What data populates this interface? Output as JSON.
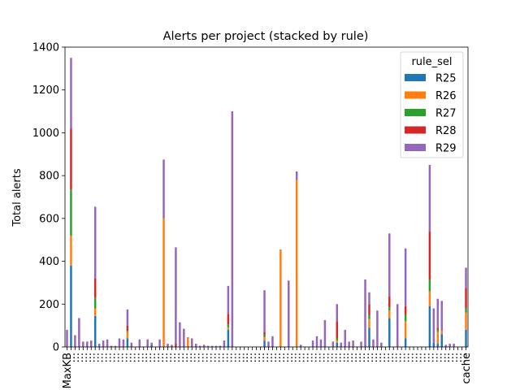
{
  "chart_data": {
    "type": "bar",
    "stacked": true,
    "title": "Alerts per project (stacked by rule)",
    "xlabel": "",
    "ylabel": "Total alerts",
    "ylim": [
      0,
      1400
    ],
    "yticks": [
      0,
      200,
      400,
      600,
      800,
      1000,
      1200,
      1400
    ],
    "grid": false,
    "legend": {
      "title": "rule_sel",
      "placement": "top-right"
    },
    "colors": {
      "R25": "#1f77b4",
      "R26": "#ff7f0e",
      "R27": "#2ca02c",
      "R28": "#d62728",
      "R29": "#9467bd"
    },
    "categories": [
      "MaxKB",
      "...",
      "...",
      "...",
      "...",
      "...",
      "...",
      "...",
      "...",
      "...",
      "...",
      "...",
      "...",
      "...",
      "...",
      "...",
      "...",
      "...",
      "...",
      "...",
      "...",
      "...",
      "...",
      "...",
      "...",
      "...",
      "...",
      "...",
      "...",
      "...",
      "...",
      "...",
      "...",
      "...",
      "...",
      "...",
      "...",
      "...",
      "...",
      "...",
      "...",
      "...",
      "...",
      "...",
      "...",
      "...",
      "...",
      "...",
      "...",
      "...",
      "...",
      "...",
      "...",
      "...",
      "...",
      "...",
      "...",
      "...",
      "...",
      "...",
      "...",
      "...",
      "...",
      "...",
      "...",
      "...",
      "...",
      "...",
      "...",
      "...",
      "...",
      "...",
      "...",
      "...",
      "...",
      "...",
      "...",
      "...",
      "...",
      "...",
      "...",
      "...",
      "...",
      "...",
      "...",
      "...",
      "...",
      "...",
      "...",
      "...",
      "...",
      "...",
      "...",
      "...",
      "...",
      "...",
      "...",
      "...",
      "...",
      "cache"
    ],
    "series": [
      {
        "name": "R25",
        "values": [
          0,
          380,
          0,
          0,
          0,
          0,
          0,
          145,
          0,
          0,
          0,
          0,
          0,
          0,
          0,
          40,
          0,
          0,
          0,
          0,
          0,
          10,
          0,
          0,
          0,
          0,
          0,
          0,
          0,
          0,
          0,
          0,
          0,
          0,
          0,
          0,
          0,
          0,
          0,
          0,
          80,
          0,
          0,
          0,
          0,
          0,
          0,
          0,
          0,
          30,
          0,
          0,
          0,
          0,
          0,
          0,
          0,
          0,
          0,
          0,
          0,
          0,
          0,
          0,
          0,
          0,
          0,
          20,
          0,
          0,
          0,
          0,
          0,
          0,
          0,
          90,
          0,
          0,
          0,
          0,
          135,
          0,
          0,
          0,
          40,
          0,
          0,
          0,
          0,
          0,
          190,
          20,
          15,
          60,
          0,
          0,
          0,
          0,
          0,
          80
        ]
      },
      {
        "name": "R26",
        "values": [
          0,
          140,
          0,
          0,
          0,
          0,
          0,
          35,
          0,
          0,
          0,
          0,
          0,
          0,
          0,
          30,
          0,
          0,
          0,
          0,
          0,
          0,
          0,
          0,
          600,
          0,
          0,
          0,
          0,
          0,
          40,
          0,
          0,
          0,
          0,
          0,
          0,
          0,
          0,
          0,
          10,
          0,
          0,
          0,
          0,
          0,
          0,
          0,
          0,
          15,
          0,
          0,
          0,
          455,
          0,
          0,
          0,
          780,
          0,
          0,
          0,
          0,
          0,
          0,
          0,
          0,
          0,
          10,
          0,
          0,
          0,
          0,
          0,
          0,
          0,
          40,
          0,
          0,
          0,
          0,
          35,
          0,
          0,
          0,
          80,
          0,
          0,
          0,
          0,
          0,
          70,
          0,
          55,
          15,
          0,
          0,
          0,
          0,
          0,
          80
        ]
      },
      {
        "name": "R27",
        "values": [
          0,
          215,
          0,
          0,
          0,
          0,
          0,
          50,
          0,
          0,
          0,
          0,
          0,
          0,
          0,
          5,
          0,
          0,
          0,
          0,
          0,
          0,
          0,
          0,
          0,
          0,
          0,
          0,
          0,
          0,
          0,
          0,
          0,
          0,
          0,
          0,
          0,
          0,
          0,
          0,
          15,
          0,
          0,
          0,
          0,
          0,
          0,
          0,
          0,
          10,
          0,
          0,
          0,
          0,
          0,
          0,
          0,
          0,
          0,
          0,
          0,
          0,
          0,
          0,
          0,
          0,
          0,
          10,
          0,
          0,
          0,
          0,
          0,
          0,
          0,
          20,
          0,
          0,
          0,
          0,
          15,
          0,
          0,
          0,
          30,
          0,
          0,
          0,
          0,
          0,
          55,
          0,
          10,
          0,
          0,
          0,
          0,
          0,
          0,
          20
        ]
      },
      {
        "name": "R28",
        "values": [
          0,
          285,
          0,
          0,
          0,
          0,
          0,
          90,
          0,
          0,
          0,
          0,
          0,
          0,
          0,
          25,
          0,
          0,
          0,
          0,
          0,
          0,
          0,
          0,
          0,
          0,
          0,
          15,
          0,
          0,
          0,
          0,
          0,
          0,
          0,
          0,
          0,
          0,
          0,
          0,
          50,
          0,
          0,
          0,
          0,
          0,
          0,
          0,
          0,
          15,
          0,
          0,
          0,
          0,
          0,
          0,
          0,
          0,
          0,
          0,
          0,
          0,
          0,
          0,
          0,
          0,
          0,
          80,
          0,
          0,
          0,
          0,
          0,
          0,
          0,
          50,
          0,
          0,
          0,
          0,
          50,
          0,
          0,
          0,
          40,
          0,
          0,
          0,
          0,
          0,
          225,
          0,
          10,
          0,
          0,
          0,
          0,
          0,
          0,
          95
        ]
      },
      {
        "name": "R29",
        "values": [
          80,
          330,
          55,
          135,
          25,
          25,
          30,
          335,
          15,
          30,
          35,
          5,
          5,
          40,
          35,
          75,
          20,
          0,
          35,
          0,
          35,
          10,
          0,
          35,
          275,
          15,
          10,
          450,
          115,
          85,
          5,
          40,
          15,
          5,
          10,
          5,
          5,
          5,
          5,
          30,
          130,
          1100,
          0,
          0,
          0,
          0,
          0,
          0,
          0,
          195,
          25,
          50,
          0,
          0,
          0,
          310,
          0,
          40,
          10,
          0,
          0,
          30,
          50,
          35,
          125,
          0,
          25,
          80,
          20,
          80,
          25,
          30,
          0,
          25,
          315,
          55,
          35,
          170,
          20,
          0,
          295,
          0,
          200,
          0,
          270,
          0,
          0,
          0,
          0,
          0,
          310,
          160,
          135,
          140,
          10,
          15,
          15,
          0,
          0,
          95
        ]
      }
    ]
  }
}
